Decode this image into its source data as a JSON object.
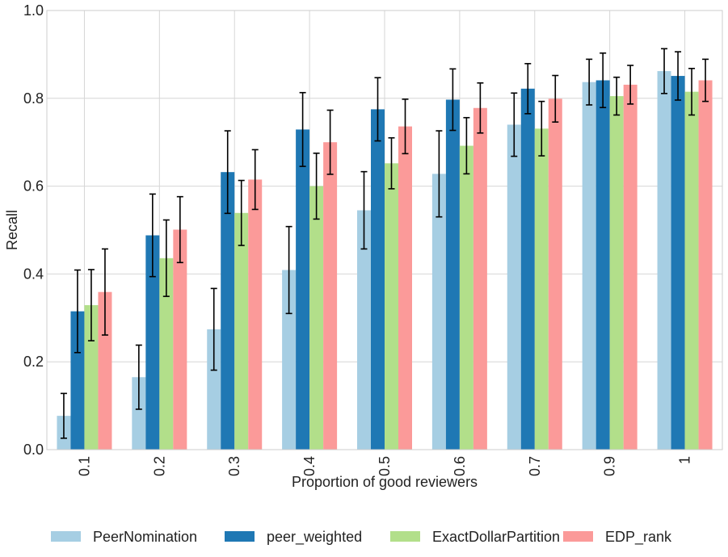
{
  "chart_data": {
    "type": "bar",
    "xlabel": "Proportion of good reviewers",
    "ylabel": "Recall",
    "ylim": [
      0,
      1.0
    ],
    "yticks": [
      "0.0",
      "0.2",
      "0.4",
      "0.6",
      "0.8",
      "1.0"
    ],
    "categories": [
      "0.1",
      "0.2",
      "0.3",
      "0.4",
      "0.5",
      "0.6",
      "0.7",
      "0.9",
      "1"
    ],
    "grid": true,
    "legend_position": "bottom",
    "series": [
      {
        "name": "PeerNomination",
        "color": "#a6cee3",
        "values": [
          0.077,
          0.165,
          0.274,
          0.409,
          0.545,
          0.628,
          0.74,
          0.837,
          0.862
        ],
        "errors": [
          0.051,
          0.073,
          0.093,
          0.099,
          0.088,
          0.098,
          0.072,
          0.052,
          0.051
        ]
      },
      {
        "name": "peer_weighted",
        "color": "#1f78b4",
        "values": [
          0.315,
          0.488,
          0.632,
          0.729,
          0.775,
          0.797,
          0.822,
          0.841,
          0.851
        ],
        "errors": [
          0.094,
          0.094,
          0.094,
          0.084,
          0.072,
          0.07,
          0.057,
          0.062,
          0.055
        ]
      },
      {
        "name": "ExactDollarPartition",
        "color": "#b2df8a",
        "values": [
          0.329,
          0.436,
          0.539,
          0.6,
          0.652,
          0.692,
          0.731,
          0.805,
          0.815
        ],
        "errors": [
          0.081,
          0.087,
          0.074,
          0.075,
          0.058,
          0.064,
          0.062,
          0.043,
          0.053
        ]
      },
      {
        "name": "EDP_rank",
        "color": "#fb9a99",
        "values": [
          0.359,
          0.501,
          0.615,
          0.7,
          0.736,
          0.778,
          0.799,
          0.831,
          0.841
        ],
        "errors": [
          0.098,
          0.075,
          0.068,
          0.073,
          0.062,
          0.057,
          0.053,
          0.044,
          0.048
        ]
      }
    ]
  }
}
